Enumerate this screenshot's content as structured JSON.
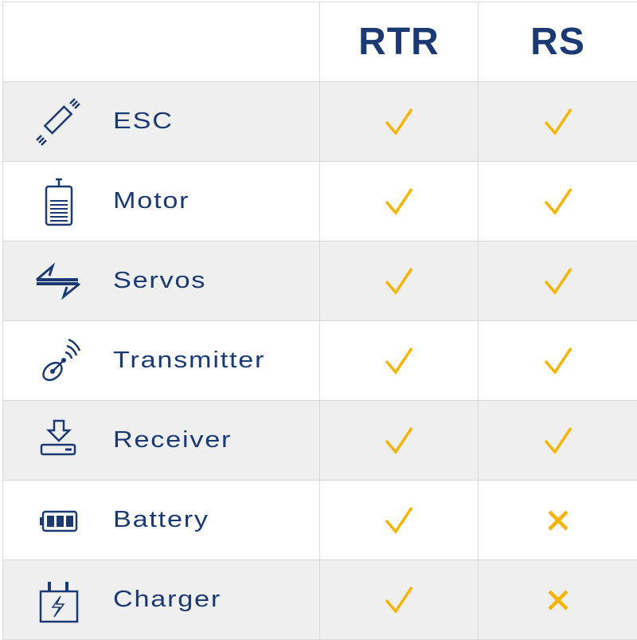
{
  "header": {
    "col1": "",
    "col2": "RTR",
    "col3": "RS"
  },
  "colors": {
    "text": "#1b3a73",
    "check": "#f5b400",
    "shade": "#efefef"
  },
  "rows": [
    {
      "label": "ESC",
      "icon": "esc-icon",
      "rtr": true,
      "rs": true
    },
    {
      "label": "Motor",
      "icon": "motor-icon",
      "rtr": true,
      "rs": true
    },
    {
      "label": "Servos",
      "icon": "servos-arrows-icon",
      "rtr": true,
      "rs": true
    },
    {
      "label": "Transmitter",
      "icon": "satellite-dish-icon",
      "rtr": true,
      "rs": true
    },
    {
      "label": "Receiver",
      "icon": "receiver-download-icon",
      "rtr": true,
      "rs": true
    },
    {
      "label": "Battery",
      "icon": "battery-icon",
      "rtr": true,
      "rs": false
    },
    {
      "label": "Charger",
      "icon": "charger-icon",
      "rtr": true,
      "rs": false
    }
  ]
}
